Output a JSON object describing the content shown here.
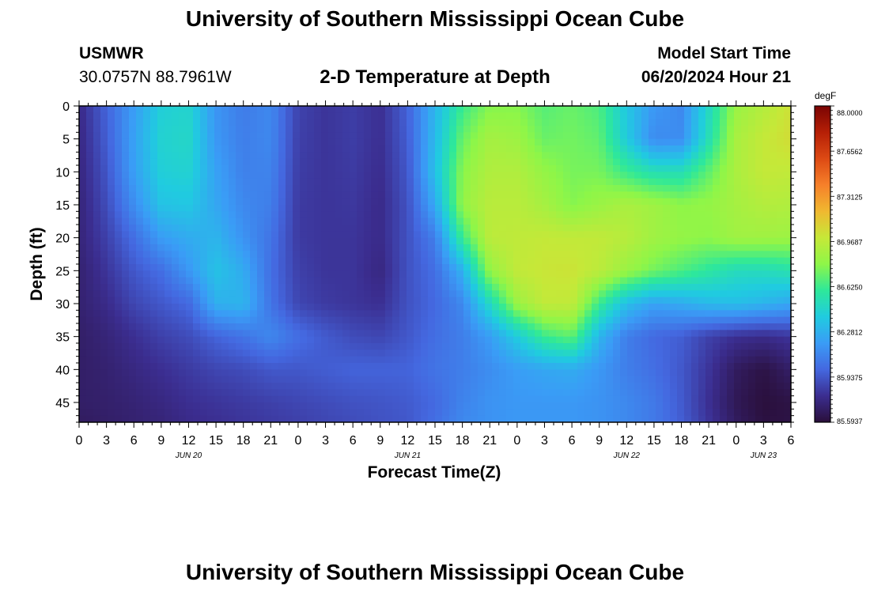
{
  "header": {
    "title": "University of Southern Mississippi Ocean Cube",
    "station": "USMWR",
    "coordinates": "30.0757N  88.7961W",
    "subtitle": "2-D Temperature at Depth",
    "model_start_label": "Model Start Time",
    "model_start_value": "06/20/2024 Hour 21"
  },
  "footer": {
    "title": "University of Southern Mississippi Ocean Cube"
  },
  "chart_data": {
    "type": "heatmap",
    "title": "2-D Temperature at Depth",
    "xlabel": "Forecast Time(Z)",
    "ylabel": "Depth (ft)",
    "x_tick_labels": [
      "0",
      "3",
      "6",
      "9",
      "12",
      "15",
      "18",
      "21",
      "0",
      "3",
      "6",
      "9",
      "12",
      "15",
      "18",
      "21",
      "0",
      "3",
      "6",
      "9",
      "12",
      "15",
      "18",
      "21",
      "0",
      "3",
      "6"
    ],
    "date_labels": [
      {
        "label": "JUN 20",
        "at_hour": 12
      },
      {
        "label": "JUN 21",
        "at_hour": 36
      },
      {
        "label": "JUN 22",
        "at_hour": 60
      },
      {
        "label": "JUN 23",
        "at_hour": 75
      }
    ],
    "xlim_hours": [
      0,
      78
    ],
    "y_ticks": [
      0,
      5,
      10,
      15,
      20,
      25,
      30,
      35,
      40,
      45
    ],
    "ylim": [
      0,
      48
    ],
    "y_inverted": true,
    "colorbar": {
      "unit": "degF",
      "labels": [
        "88.0000",
        "87.6562",
        "87.3125",
        "86.9687",
        "86.6250",
        "86.2812",
        "85.9375",
        "85.5937"
      ],
      "min": 85.5937,
      "max": 88.0,
      "colormap": [
        "#2a0f3a",
        "#3b2d8f",
        "#4468e0",
        "#3a9cf6",
        "#20cbe0",
        "#2ee89a",
        "#8ef648",
        "#c6e838",
        "#f0b830",
        "#f6802a",
        "#dd4a14",
        "#b51f06",
        "#7a0403"
      ]
    },
    "grid": false,
    "x_hours": [
      0,
      3,
      6,
      9,
      12,
      15,
      18,
      21,
      24,
      27,
      30,
      33,
      36,
      39,
      42,
      45,
      48,
      51,
      54,
      57,
      60,
      63,
      66,
      69,
      72,
      75,
      78
    ],
    "depths_ft": [
      0,
      5,
      10,
      15,
      20,
      25,
      30,
      35,
      40,
      45,
      48
    ],
    "values_degF": [
      [
        85.77,
        85.98,
        86.2,
        86.42,
        86.45,
        86.17,
        86.07,
        86.12,
        85.87,
        85.82,
        85.85,
        85.8,
        85.98,
        86.3,
        86.62,
        86.78,
        86.78,
        86.68,
        86.72,
        86.66,
        86.38,
        86.18,
        86.12,
        86.48,
        86.84,
        86.93,
        87.03
      ],
      [
        85.76,
        85.96,
        86.22,
        86.44,
        86.47,
        86.18,
        86.08,
        86.12,
        85.86,
        85.82,
        85.85,
        85.8,
        85.96,
        86.32,
        86.72,
        86.88,
        86.85,
        86.72,
        86.74,
        86.7,
        86.4,
        86.13,
        86.14,
        86.52,
        86.89,
        86.99,
        87.05
      ],
      [
        85.75,
        85.93,
        86.21,
        86.42,
        86.44,
        86.22,
        86.09,
        86.1,
        85.85,
        85.82,
        85.84,
        85.79,
        85.94,
        86.35,
        86.79,
        86.92,
        86.92,
        86.82,
        86.75,
        86.75,
        86.62,
        86.52,
        86.52,
        86.7,
        86.9,
        86.99,
        86.98
      ],
      [
        85.74,
        85.9,
        86.14,
        86.36,
        86.38,
        86.24,
        86.12,
        86.08,
        85.84,
        85.82,
        85.83,
        85.78,
        85.92,
        86.25,
        86.82,
        86.95,
        86.95,
        86.88,
        86.78,
        86.84,
        86.9,
        86.86,
        86.8,
        86.82,
        86.88,
        86.93,
        86.92
      ],
      [
        85.74,
        85.86,
        86.02,
        86.2,
        86.26,
        86.3,
        86.16,
        86.04,
        85.84,
        85.82,
        85.82,
        85.78,
        85.92,
        86.08,
        86.62,
        86.96,
        86.97,
        86.99,
        86.98,
        86.98,
        86.94,
        86.86,
        86.82,
        86.8,
        86.86,
        86.86,
        86.85
      ],
      [
        85.72,
        85.82,
        85.94,
        86.02,
        86.18,
        86.36,
        86.26,
        86.02,
        85.86,
        85.82,
        85.82,
        85.76,
        85.92,
        86.02,
        86.28,
        86.82,
        86.98,
        87.01,
        87.02,
        86.96,
        86.84,
        86.74,
        86.66,
        86.58,
        86.5,
        86.5,
        86.54
      ],
      [
        85.72,
        85.78,
        85.88,
        85.94,
        86.0,
        86.28,
        86.3,
        86.04,
        85.88,
        85.84,
        85.82,
        85.8,
        85.92,
        86.0,
        86.12,
        86.48,
        86.84,
        86.98,
        86.98,
        86.62,
        86.34,
        86.22,
        86.26,
        86.32,
        86.34,
        86.3,
        86.24
      ],
      [
        85.7,
        85.74,
        85.8,
        85.86,
        85.9,
        85.98,
        86.04,
        86.12,
        86.02,
        85.95,
        85.9,
        85.88,
        85.94,
        86.02,
        86.08,
        86.2,
        86.4,
        86.62,
        86.7,
        86.3,
        86.08,
        86.0,
        85.96,
        85.86,
        85.8,
        85.78,
        85.82
      ],
      [
        85.7,
        85.72,
        85.76,
        85.8,
        85.84,
        85.88,
        85.9,
        85.94,
        85.94,
        85.96,
        85.98,
        85.98,
        85.98,
        86.04,
        86.08,
        86.14,
        86.2,
        86.24,
        86.26,
        86.18,
        86.08,
        86.02,
        85.94,
        85.82,
        85.68,
        85.62,
        85.7
      ],
      [
        85.7,
        85.71,
        85.73,
        85.76,
        85.8,
        85.82,
        85.84,
        85.86,
        85.88,
        85.9,
        85.92,
        85.93,
        85.95,
        86.0,
        86.1,
        86.16,
        86.18,
        86.18,
        86.18,
        86.16,
        86.12,
        86.06,
        85.95,
        85.8,
        85.66,
        85.6,
        85.62
      ],
      [
        85.68,
        85.7,
        85.72,
        85.74,
        85.78,
        85.8,
        85.82,
        85.84,
        85.86,
        85.88,
        85.9,
        85.92,
        85.94,
        86.02,
        86.12,
        86.16,
        86.18,
        86.18,
        86.18,
        86.16,
        86.12,
        86.06,
        85.96,
        85.82,
        85.68,
        85.61,
        85.62
      ]
    ]
  }
}
